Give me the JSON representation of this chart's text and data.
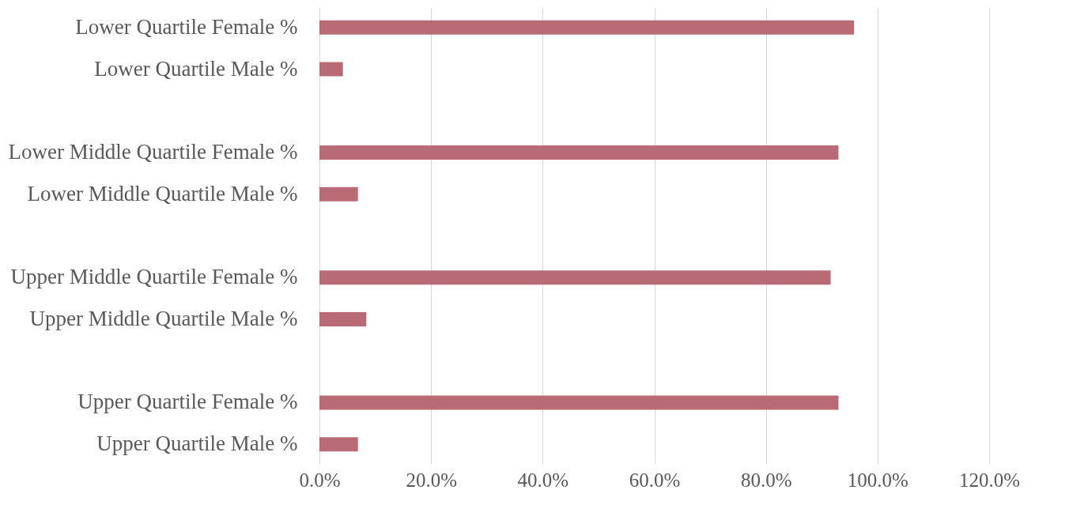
{
  "chart_data": {
    "type": "bar",
    "orientation": "horizontal",
    "categories": [
      "Lower Quartile Female %",
      "Lower Quartile Male %",
      null,
      "Lower Middle Quartile Female %",
      "Lower Middle Quartile Male %",
      null,
      "Upper Middle Quartile Female %",
      "Upper Middle Quartile Male %",
      null,
      "Upper Quartile Female %",
      "Upper Quartile Male %"
    ],
    "values": [
      95.8,
      4.2,
      null,
      93.0,
      6.9,
      null,
      91.6,
      8.4,
      null,
      93.0,
      6.9
    ],
    "color": "#b86b75",
    "xlim": [
      0,
      120
    ],
    "xticks": [
      {
        "value": 0,
        "label": "0.0%"
      },
      {
        "value": 20,
        "label": "20.0%"
      },
      {
        "value": 40,
        "label": "40.0%"
      },
      {
        "value": 60,
        "label": "60.0%"
      },
      {
        "value": 80,
        "label": "80.0%"
      },
      {
        "value": 100,
        "label": "100.0%"
      },
      {
        "value": 120,
        "label": "120.0%"
      }
    ],
    "grid": "x"
  }
}
